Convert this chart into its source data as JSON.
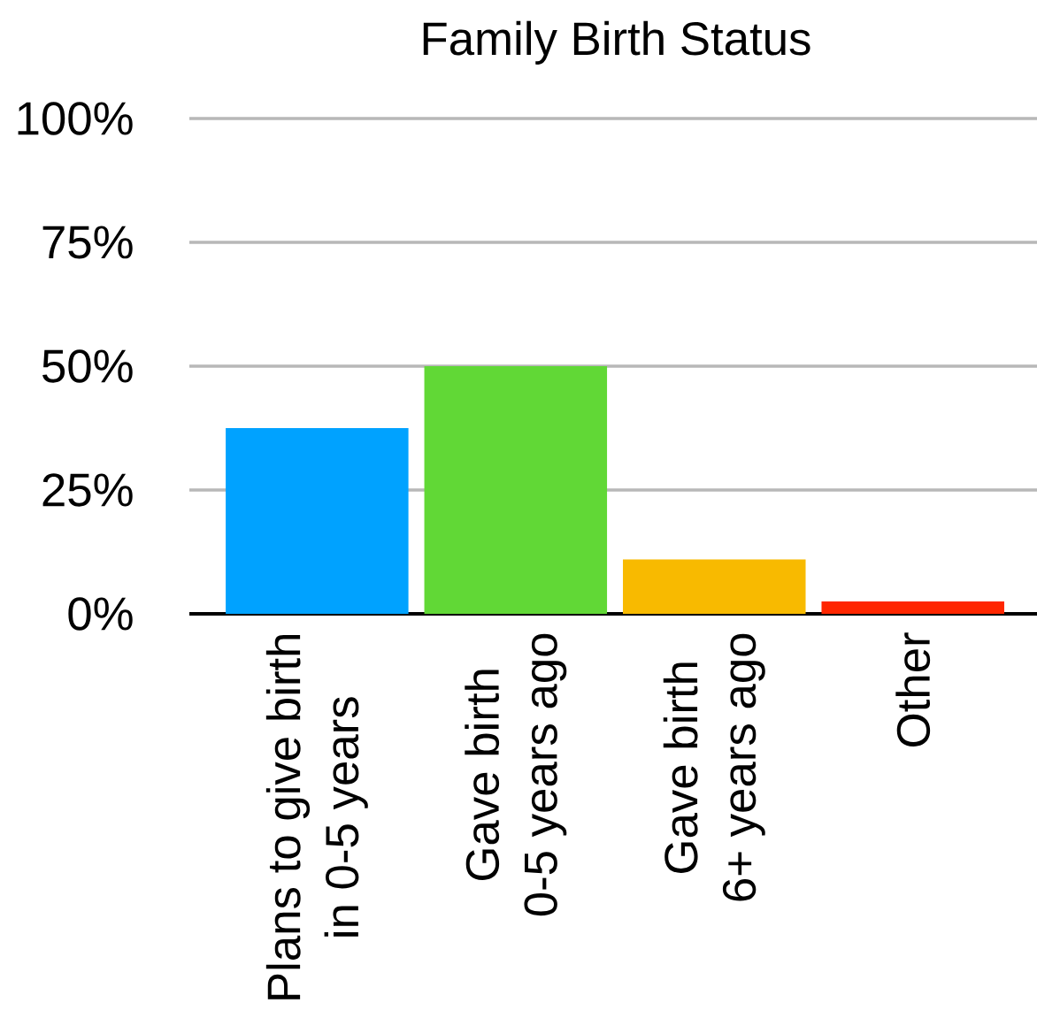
{
  "chart_data": {
    "type": "bar",
    "title": "Family Birth Status",
    "categories": [
      "Plans to give birth\nin 0-5 years",
      "Gave birth\n0-5 years ago",
      "Gave birth\n6+ years ago",
      "Other"
    ],
    "values": [
      37.5,
      50,
      11,
      2.5
    ],
    "colors": [
      "#00a2ff",
      "#61d836",
      "#f8ba00",
      "#ff2600"
    ],
    "ylim": [
      0,
      100
    ],
    "yticks": [
      {
        "value": 0,
        "label": "0%"
      },
      {
        "value": 25,
        "label": "25%"
      },
      {
        "value": 50,
        "label": "50%"
      },
      {
        "value": 75,
        "label": "75%"
      },
      {
        "value": 100,
        "label": "100%"
      }
    ],
    "grid": "y"
  }
}
